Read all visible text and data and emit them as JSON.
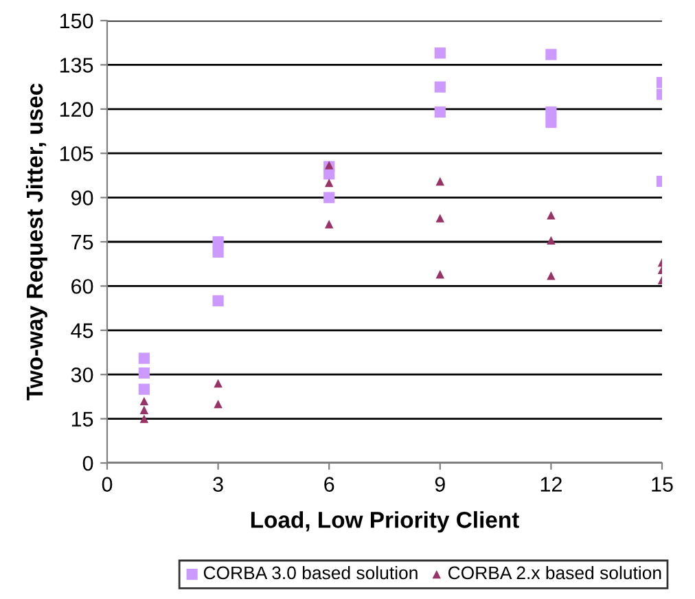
{
  "chart_data": {
    "type": "scatter",
    "xlabel": "Load, Low Priority Client",
    "ylabel": "Two-way Request Jitter, usec",
    "xlim": [
      0,
      15
    ],
    "xticks": [
      0,
      3,
      6,
      9,
      12,
      15
    ],
    "ylim": [
      0,
      150
    ],
    "yticks": [
      0,
      15,
      30,
      45,
      60,
      75,
      90,
      105,
      120,
      135,
      150
    ],
    "grid": "y",
    "legend": "bottom",
    "series": [
      {
        "name": "CORBA 3.0 based solution",
        "color": "#cc99ff",
        "marker": "square",
        "x": [
          1,
          1,
          1,
          3,
          3,
          3,
          6,
          6,
          6,
          9,
          9,
          9,
          12,
          12,
          12,
          15,
          15,
          15
        ],
        "values": [
          35.5,
          30.5,
          25,
          75,
          71.5,
          55,
          100.5,
          98,
          90,
          139,
          127.5,
          119,
          138.5,
          119,
          115.5,
          129,
          125,
          95.5
        ]
      },
      {
        "name": "CORBA 2.x based solution",
        "color": "#993366",
        "marker": "triangle",
        "x": [
          1,
          1,
          1,
          3,
          3,
          6,
          6,
          6,
          9,
          9,
          9,
          12,
          12,
          12,
          15,
          15,
          15
        ],
        "values": [
          21,
          18,
          15,
          27,
          20,
          101,
          95,
          81,
          95.5,
          83,
          64,
          84,
          75.5,
          63.5,
          68,
          65.5,
          62
        ]
      }
    ]
  }
}
